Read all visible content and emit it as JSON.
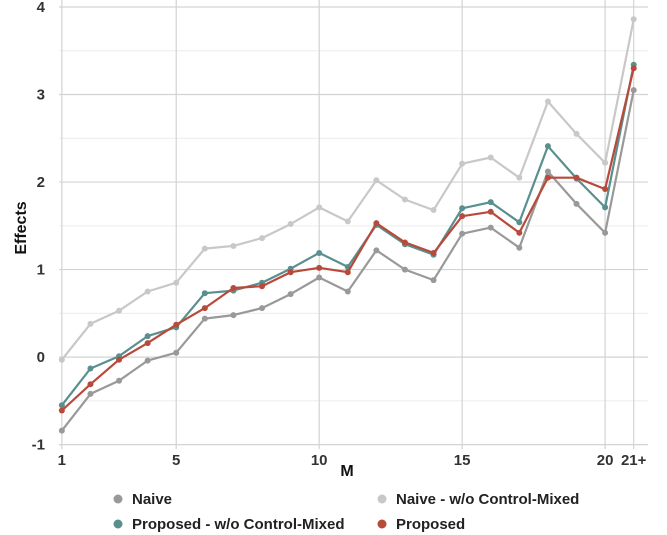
{
  "chart_data": {
    "type": "line",
    "xlabel": "M",
    "ylabel": "Effects",
    "x": [
      1,
      2,
      3,
      4,
      5,
      6,
      7,
      8,
      9,
      10,
      11,
      12,
      13,
      14,
      15,
      16,
      17,
      18,
      19,
      20,
      21
    ],
    "x_ticks": [
      1,
      5,
      10,
      15,
      20,
      21
    ],
    "x_tick_labels": [
      "1",
      "5",
      "10",
      "15",
      "20",
      "21+"
    ],
    "xlim": [
      0.9,
      21.5
    ],
    "y_ticks": [
      -1,
      0,
      1,
      2,
      3,
      4
    ],
    "y_tick_labels": [
      "-1",
      "0",
      "1",
      "2",
      "3",
      "4"
    ],
    "ylim": [
      -1.05,
      4.08
    ],
    "grid": true,
    "legend_position": "bottom",
    "series": [
      {
        "name": "Naive - w/o Control-Mixed",
        "color": "#c8c8c8",
        "values": [
          -0.03,
          0.38,
          0.53,
          0.75,
          0.85,
          1.24,
          1.27,
          1.36,
          1.52,
          1.71,
          1.55,
          2.02,
          1.8,
          1.68,
          2.21,
          2.28,
          2.05,
          2.92,
          2.55,
          2.22,
          3.86
        ]
      },
      {
        "name": "Naive",
        "color": "#999999",
        "values": [
          -0.84,
          -0.42,
          -0.27,
          -0.04,
          0.05,
          0.44,
          0.48,
          0.56,
          0.72,
          0.91,
          0.75,
          1.22,
          1.0,
          0.88,
          1.41,
          1.48,
          1.25,
          2.12,
          1.75,
          1.42,
          3.05
        ]
      },
      {
        "name": "Proposed - w/o Control-Mixed",
        "color": "#5a8f8f",
        "values": [
          -0.55,
          -0.13,
          0.01,
          0.24,
          0.34,
          0.73,
          0.76,
          0.85,
          1.01,
          1.19,
          1.03,
          1.51,
          1.29,
          1.17,
          1.7,
          1.77,
          1.54,
          2.41,
          2.04,
          1.71,
          3.34
        ]
      },
      {
        "name": "Proposed",
        "color": "#b84a3c",
        "values": [
          -0.61,
          -0.31,
          -0.03,
          0.16,
          0.37,
          0.56,
          0.79,
          0.81,
          0.97,
          1.02,
          0.97,
          1.53,
          1.31,
          1.19,
          1.61,
          1.66,
          1.42,
          2.05,
          2.05,
          1.92,
          3.3
        ]
      }
    ],
    "legend": [
      {
        "name": "Naive",
        "color": "#999999"
      },
      {
        "name": "Naive - w/o Control-Mixed",
        "color": "#c8c8c8"
      },
      {
        "name": "Proposed - w/o Control-Mixed",
        "color": "#5a8f8f"
      },
      {
        "name": "Proposed",
        "color": "#b84a3c"
      }
    ]
  }
}
